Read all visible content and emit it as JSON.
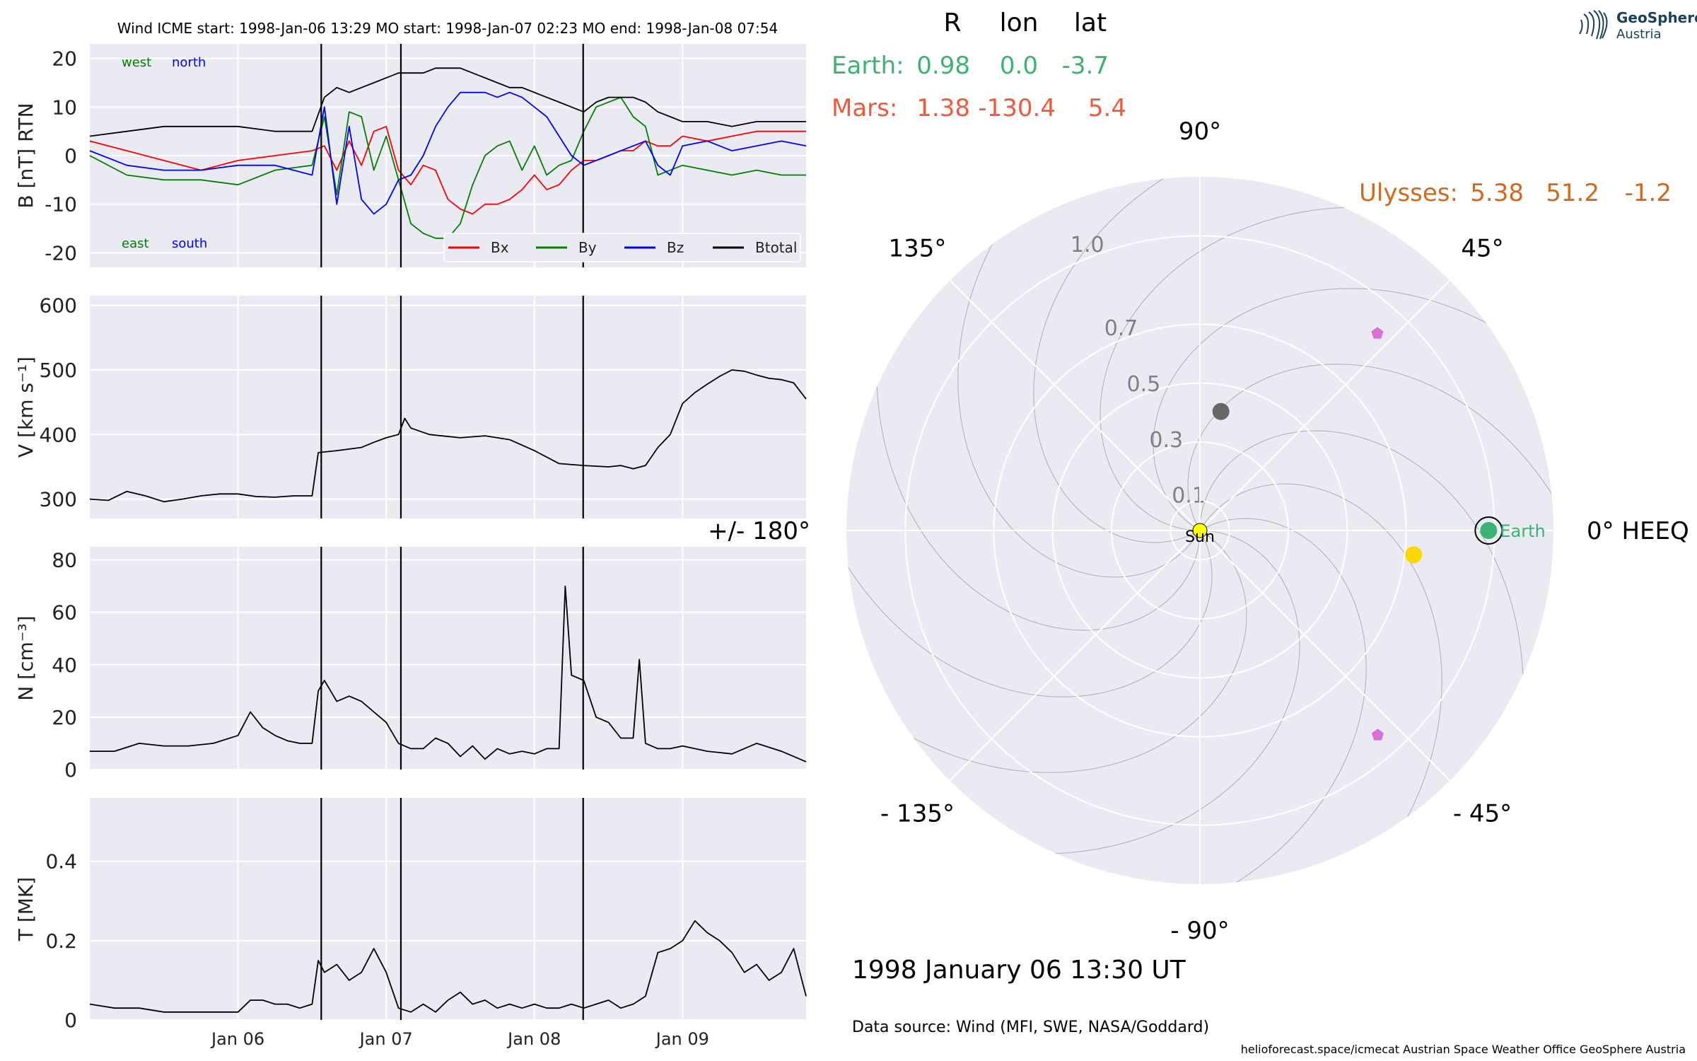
{
  "header": {
    "title": "Wind    ICME start: 1998-Jan-06 13:29   MO start: 1998-Jan-07 02:23   MO end: 1998-Jan-08 07:54"
  },
  "positions_table": {
    "columns": [
      "R",
      "lon",
      "lat"
    ],
    "rows": [
      {
        "name": "Earth:",
        "R": "0.98",
        "lon": "0.0",
        "lat": "-3.7",
        "color": "#3cb371"
      },
      {
        "name": "Mars:",
        "R": "1.38",
        "lon": "-130.4",
        "lat": "5.4",
        "color": "#f05a3a"
      },
      {
        "name": "Ulysses:",
        "R": "5.38",
        "lon": "51.2",
        "lat": "-1.2",
        "color": "#d2691e"
      }
    ]
  },
  "logo": {
    "line1": "GeoSphere",
    "line2": "Austria"
  },
  "date_label": "1998 January 06  13:30 UT",
  "source_label": "Data source: Wind (MFI, SWE, NASA/Goddard)",
  "credits": "helioforecast.space/icmecat   Austrian Space Weather Office   GeoSphere Austria",
  "colors": {
    "plot_bg": "#eaeaf2",
    "grid": "#ffffff",
    "bx": "#ff0000",
    "by": "#008000",
    "bz": "#0000ff",
    "btotal": "#000000"
  },
  "chart_data": [
    {
      "type": "line",
      "panel": "B",
      "ylabel": "B [nT] RTN",
      "ylim": [
        -23,
        23
      ],
      "yticks": [
        -20,
        -10,
        0,
        10,
        20
      ],
      "xlim_days": [
        "1998-01-05 00:00",
        "1998-01-09 20:00"
      ],
      "xticks": [
        "Jan 06",
        "Jan 07",
        "Jan 08",
        "Jan 09"
      ],
      "event_lines": [
        "1998-01-06 13:29",
        "1998-01-07 02:23",
        "1998-01-08 07:54"
      ],
      "annotations": [
        {
          "text": "west",
          "color": "#008000"
        },
        {
          "text": "north",
          "color": "#0000ff"
        },
        {
          "text": "east",
          "color": "#008000"
        },
        {
          "text": "south",
          "color": "#0000ff"
        }
      ],
      "legend": [
        "Bx",
        "By",
        "Bz",
        "Btotal"
      ],
      "series": [
        {
          "name": "Bx",
          "color": "#ff0000",
          "t_hours": [
            0,
            6,
            12,
            18,
            24,
            30,
            36,
            38,
            40,
            42,
            44,
            46,
            48,
            50,
            52,
            54,
            56,
            58,
            60,
            62,
            64,
            66,
            68,
            70,
            72,
            74,
            76,
            78,
            80,
            82,
            84,
            86,
            88,
            90,
            92,
            94,
            96,
            100,
            104,
            108,
            112,
            116
          ],
          "values": [
            3,
            1,
            -1,
            -3,
            -1,
            0,
            1,
            2,
            -3,
            3,
            -2,
            5,
            6,
            -3,
            -6,
            -2,
            -3,
            -9,
            -11,
            -12,
            -10,
            -10,
            -9,
            -7,
            -4,
            -7,
            -6,
            -3,
            -1,
            -1,
            0,
            1,
            1,
            3,
            2,
            2,
            4,
            3,
            4,
            5,
            5,
            5
          ]
        },
        {
          "name": "By",
          "color": "#008000",
          "t_hours": [
            0,
            6,
            12,
            18,
            24,
            30,
            36,
            38,
            40,
            42,
            44,
            46,
            48,
            50,
            52,
            54,
            56,
            58,
            60,
            62,
            64,
            66,
            68,
            70,
            72,
            74,
            76,
            78,
            80,
            82,
            84,
            86,
            88,
            90,
            92,
            94,
            96,
            100,
            104,
            108,
            112,
            116
          ],
          "values": [
            0,
            -4,
            -5,
            -5,
            -6,
            -3,
            -2,
            8,
            -8,
            9,
            8,
            -3,
            4,
            -5,
            -14,
            -16,
            -17,
            -17,
            -14,
            -6,
            0,
            2,
            3,
            -3,
            2,
            -4,
            -2,
            -1,
            5,
            10,
            11,
            12,
            8,
            6,
            -4,
            -3,
            -2,
            -3,
            -4,
            -3,
            -4,
            -4
          ]
        },
        {
          "name": "Bz",
          "color": "#0000ff",
          "t_hours": [
            0,
            6,
            12,
            18,
            24,
            30,
            36,
            38,
            40,
            42,
            44,
            46,
            48,
            50,
            52,
            54,
            56,
            58,
            60,
            62,
            64,
            66,
            68,
            70,
            72,
            74,
            76,
            78,
            80,
            82,
            84,
            86,
            88,
            90,
            92,
            94,
            96,
            100,
            104,
            108,
            112,
            116
          ],
          "values": [
            1,
            -2,
            -3,
            -3,
            -2,
            -2,
            -4,
            10,
            -10,
            6,
            -9,
            -12,
            -10,
            -5,
            -4,
            0,
            6,
            10,
            13,
            13,
            13,
            12,
            13,
            12,
            10,
            8,
            4,
            0,
            -2,
            -1,
            0,
            1,
            2,
            3,
            -2,
            -4,
            2,
            3,
            1,
            2,
            3,
            2
          ]
        },
        {
          "name": "Btotal",
          "color": "#000000",
          "t_hours": [
            0,
            6,
            12,
            18,
            24,
            30,
            36,
            38,
            40,
            42,
            44,
            46,
            48,
            50,
            52,
            54,
            56,
            58,
            60,
            62,
            64,
            66,
            68,
            70,
            72,
            74,
            76,
            78,
            80,
            82,
            84,
            86,
            88,
            90,
            92,
            94,
            96,
            100,
            104,
            108,
            112,
            116
          ],
          "values": [
            4,
            5,
            6,
            6,
            6,
            5,
            5,
            12,
            14,
            13,
            14,
            15,
            16,
            17,
            17,
            17,
            18,
            18,
            18,
            17,
            16,
            15,
            14,
            14,
            13,
            12,
            11,
            10,
            9,
            11,
            12,
            12,
            12,
            11,
            9,
            8,
            7,
            7,
            6,
            7,
            7,
            7
          ]
        }
      ]
    },
    {
      "type": "line",
      "panel": "V",
      "ylabel": "V [km s⁻¹]",
      "ylim": [
        270,
        615
      ],
      "yticks": [
        300,
        400,
        500,
        600
      ],
      "series": [
        {
          "name": "V",
          "color": "#000000",
          "t_hours": [
            0,
            3,
            6,
            9,
            12,
            15,
            18,
            21,
            24,
            27,
            30,
            33,
            36,
            37,
            40,
            44,
            46,
            48,
            50,
            51,
            52,
            55,
            60,
            64,
            68,
            72,
            75,
            76,
            80,
            84,
            86,
            88,
            90,
            92,
            94,
            96,
            98,
            100,
            102,
            104,
            106,
            108,
            110,
            112,
            114,
            116
          ],
          "values": [
            300,
            298,
            312,
            305,
            296,
            300,
            305,
            308,
            308,
            304,
            303,
            305,
            305,
            372,
            375,
            380,
            388,
            395,
            400,
            425,
            410,
            400,
            395,
            398,
            392,
            375,
            360,
            355,
            352,
            350,
            352,
            347,
            352,
            380,
            400,
            448,
            465,
            478,
            490,
            500,
            498,
            492,
            487,
            485,
            480,
            455
          ]
        }
      ]
    },
    {
      "type": "line",
      "panel": "N",
      "ylabel": "N [cm⁻³]",
      "ylim": [
        0,
        85
      ],
      "yticks": [
        0,
        20,
        40,
        60,
        80
      ],
      "series": [
        {
          "name": "N",
          "color": "#000000",
          "t_hours": [
            0,
            4,
            8,
            12,
            16,
            20,
            24,
            26,
            28,
            30,
            32,
            34,
            36,
            37,
            38,
            40,
            42,
            44,
            46,
            48,
            50,
            52,
            54,
            56,
            58,
            60,
            62,
            64,
            66,
            68,
            70,
            72,
            74,
            76,
            77,
            78,
            80,
            82,
            84,
            86,
            88,
            89,
            90,
            92,
            94,
            96,
            100,
            104,
            108,
            112,
            116
          ],
          "values": [
            7,
            7,
            10,
            9,
            9,
            10,
            13,
            22,
            16,
            13,
            11,
            10,
            10,
            30,
            34,
            26,
            28,
            26,
            22,
            18,
            10,
            8,
            8,
            12,
            10,
            5,
            9,
            4,
            8,
            6,
            7,
            6,
            8,
            8,
            70,
            36,
            34,
            20,
            18,
            12,
            12,
            42,
            10,
            8,
            8,
            9,
            7,
            6,
            10,
            7,
            3
          ]
        }
      ]
    },
    {
      "type": "line",
      "panel": "T",
      "ylabel": "T [MK]",
      "ylim": [
        0,
        0.56
      ],
      "yticks": [
        0.0,
        0.2,
        0.4
      ],
      "series": [
        {
          "name": "T",
          "color": "#000000",
          "t_hours": [
            0,
            4,
            8,
            12,
            16,
            20,
            24,
            26,
            28,
            30,
            32,
            34,
            36,
            37,
            38,
            40,
            42,
            44,
            46,
            48,
            50,
            52,
            54,
            56,
            58,
            60,
            62,
            64,
            66,
            68,
            70,
            72,
            74,
            76,
            78,
            80,
            82,
            84,
            86,
            88,
            90,
            92,
            94,
            96,
            98,
            100,
            102,
            104,
            106,
            108,
            110,
            112,
            114,
            116
          ],
          "values": [
            0.04,
            0.03,
            0.03,
            0.02,
            0.02,
            0.02,
            0.02,
            0.05,
            0.05,
            0.04,
            0.04,
            0.03,
            0.04,
            0.15,
            0.12,
            0.14,
            0.1,
            0.12,
            0.18,
            0.12,
            0.03,
            0.02,
            0.04,
            0.02,
            0.05,
            0.07,
            0.04,
            0.05,
            0.03,
            0.04,
            0.03,
            0.04,
            0.03,
            0.03,
            0.04,
            0.03,
            0.04,
            0.05,
            0.03,
            0.04,
            0.06,
            0.17,
            0.18,
            0.2,
            0.25,
            0.22,
            0.2,
            0.17,
            0.12,
            0.14,
            0.1,
            0.12,
            0.18,
            0.06
          ]
        }
      ]
    },
    {
      "type": "polar",
      "panel": "position_map",
      "angle_labels": [
        "90°",
        "45°",
        "0° HEEQ",
        "- 45°",
        "- 90°",
        "- 135°",
        "+/- 180°",
        "135°"
      ],
      "radial_ticks": [
        "0.1",
        "0.3",
        "0.5",
        "0.7",
        "1.0"
      ],
      "radial_values": [
        0.1,
        0.3,
        0.5,
        0.7,
        1.0
      ],
      "max_r": 1.2,
      "bodies": [
        {
          "label": "Sun",
          "r": 0.0,
          "lon": 0,
          "color": "#ffff00",
          "marker": "circle"
        },
        {
          "label": "Earth",
          "r": 0.98,
          "lon": 0.0,
          "color": "#3cb371",
          "marker": "circle-ring"
        },
        {
          "label": "",
          "r": 0.73,
          "lon": -6.5,
          "color": "#ffd700",
          "marker": "circle"
        },
        {
          "label": "",
          "r": 0.41,
          "lon": 80,
          "color": "#666666",
          "marker": "circle"
        },
        {
          "label": "",
          "r": 0.9,
          "lon": 48,
          "color": "#da70d6",
          "marker": "pentagon"
        },
        {
          "label": "",
          "r": 0.92,
          "lon": -49,
          "color": "#da70d6",
          "marker": "pentagon"
        }
      ]
    }
  ]
}
